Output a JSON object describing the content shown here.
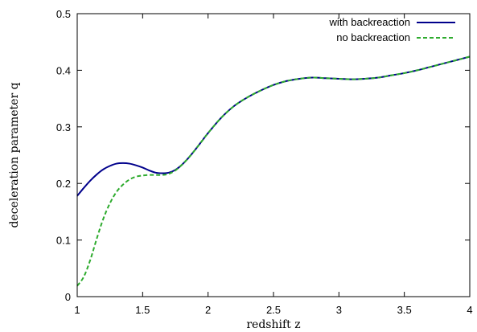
{
  "chart_data": {
    "type": "line",
    "xlabel": "redshift z",
    "ylabel": "deceleration parameter q",
    "xlim": [
      1,
      4
    ],
    "ylim": [
      0,
      0.5
    ],
    "xticks": [
      "1",
      "1.5",
      "2",
      "2.5",
      "3",
      "3.5",
      "4"
    ],
    "yticks": [
      "0",
      "0.1",
      "0.2",
      "0.3",
      "0.4",
      "0.5"
    ],
    "grid": false,
    "legend_position": "top-right",
    "series": [
      {
        "name": "with backreaction",
        "color": "#00008b",
        "style": "solid",
        "x": [
          1.0,
          1.05,
          1.1,
          1.15,
          1.2,
          1.25,
          1.3,
          1.35,
          1.4,
          1.45,
          1.5,
          1.55,
          1.6,
          1.65,
          1.7,
          1.75,
          1.8,
          1.85,
          1.9,
          1.95,
          2.0,
          2.1,
          2.2,
          2.3,
          2.4,
          2.5,
          2.6,
          2.7,
          2.8,
          2.9,
          3.0,
          3.1,
          3.2,
          3.3,
          3.4,
          3.5,
          3.6,
          3.7,
          3.8,
          3.9,
          4.0
        ],
        "y": [
          0.178,
          0.192,
          0.205,
          0.216,
          0.225,
          0.231,
          0.235,
          0.236,
          0.235,
          0.232,
          0.228,
          0.223,
          0.219,
          0.218,
          0.219,
          0.224,
          0.233,
          0.245,
          0.259,
          0.274,
          0.289,
          0.316,
          0.337,
          0.352,
          0.364,
          0.374,
          0.381,
          0.385,
          0.387,
          0.386,
          0.385,
          0.384,
          0.385,
          0.387,
          0.391,
          0.395,
          0.4,
          0.406,
          0.412,
          0.418,
          0.424
        ]
      },
      {
        "name": "no backreaction",
        "color": "#2eab2e",
        "style": "dashed",
        "x": [
          1.0,
          1.05,
          1.1,
          1.15,
          1.2,
          1.25,
          1.3,
          1.35,
          1.4,
          1.45,
          1.5,
          1.55,
          1.6,
          1.65,
          1.7,
          1.75,
          1.8,
          1.85,
          1.9,
          1.95,
          2.0,
          2.1,
          2.2,
          2.3,
          2.4,
          2.5,
          2.6,
          2.7,
          2.8,
          2.9,
          3.0,
          3.1,
          3.2,
          3.3,
          3.4,
          3.5,
          3.6,
          3.7,
          3.8,
          3.9,
          4.0
        ],
        "y": [
          0.019,
          0.035,
          0.065,
          0.103,
          0.138,
          0.165,
          0.185,
          0.198,
          0.207,
          0.212,
          0.214,
          0.215,
          0.215,
          0.215,
          0.217,
          0.223,
          0.233,
          0.245,
          0.259,
          0.274,
          0.289,
          0.316,
          0.337,
          0.352,
          0.364,
          0.374,
          0.381,
          0.385,
          0.387,
          0.386,
          0.385,
          0.384,
          0.385,
          0.387,
          0.391,
          0.395,
          0.4,
          0.406,
          0.412,
          0.418,
          0.424
        ]
      }
    ]
  }
}
